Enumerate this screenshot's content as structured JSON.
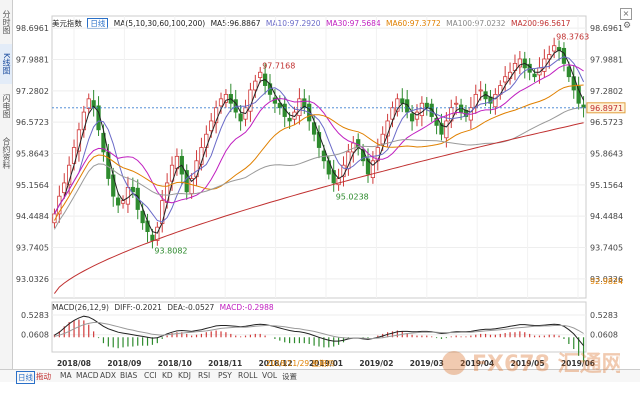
{
  "side_tabs": [
    "分时图",
    "K线图",
    "闪电图",
    "合约资料"
  ],
  "legend": {
    "title": "美元指数",
    "period": "日线",
    "params": "MA(5,10,30,60,100,200)",
    "ma5": "MA5:96.8867",
    "ma10": "MA10:97.2920",
    "ma30": "MA30:97.5684",
    "ma60": "MA60:97.3772",
    "ma100": "MA100:97.0232",
    "ma200": "MA200:96.5617"
  },
  "colors": {
    "up": "#d03a3a",
    "down": "#2e8b2e",
    "ma5": "#222222",
    "ma10": "#6a6ac8",
    "ma30": "#c020c0",
    "ma60": "#e08000",
    "ma100": "#9a9a9a",
    "ma200": "#c03030",
    "dif": "#222222",
    "dea": "#9a9a9a",
    "macd": "#c020c0"
  },
  "macd_legend": {
    "params": "MACD(26,12,9)",
    "dif": "DIFF:-0.2021",
    "dea": "DEA:-0.0527",
    "macd": "MACD:-0.2988"
  },
  "toolbar": {
    "period": "日线",
    "drag": "拖动",
    "indicators": [
      "MA",
      "MACD",
      "ADX",
      "BIAS",
      "CCI",
      "KD",
      "KDJ",
      "RSI",
      "PSY",
      "ROLL",
      "VOL"
    ],
    "settings": "设置",
    "close": "×"
  },
  "watermark": "FX678 汇通网",
  "date_highlight": "2018/11/29 星期四",
  "current_price_label": "96.8971",
  "chart_data": {
    "type": "candlestick",
    "title": "美元指数",
    "y_ticks": [
      "98.6961",
      "97.9881",
      "97.2802",
      "96.5723",
      "95.8643",
      "95.1564",
      "94.4484",
      "93.7405",
      "93.0326"
    ],
    "y_range": [
      92.6,
      98.7
    ],
    "x_labels": [
      "2018/08",
      "2018/09",
      "2018/10",
      "2018/11",
      "2018/12",
      "2019/01",
      "2019/02",
      "2019/03",
      "2019/04",
      "2019/05",
      "2019/06"
    ],
    "annotations": [
      {
        "label": "97.7168",
        "type": "high"
      },
      {
        "label": "98.3763",
        "type": "high"
      },
      {
        "label": "93.8082",
        "type": "low"
      },
      {
        "label": "95.0238",
        "type": "low"
      }
    ],
    "bottom_left_label": "92.9824",
    "close_series_approx": [
      94.5,
      94.9,
      95.2,
      95.6,
      96.0,
      96.4,
      96.8,
      97.1,
      96.9,
      96.4,
      95.9,
      95.3,
      94.9,
      94.7,
      94.8,
      95.1,
      95.0,
      94.6,
      94.3,
      94.1,
      93.9,
      94.2,
      94.8,
      95.2,
      95.6,
      95.8,
      95.4,
      95.0,
      95.3,
      95.7,
      96.0,
      96.3,
      96.6,
      96.9,
      97.1,
      97.2,
      97.0,
      96.8,
      96.6,
      96.9,
      97.3,
      97.5,
      97.7,
      97.4,
      97.2,
      97.0,
      96.9,
      96.7,
      96.6,
      96.8,
      97.1,
      96.9,
      96.6,
      96.3,
      96.0,
      95.7,
      95.4,
      95.2,
      95.3,
      95.6,
      95.9,
      96.1,
      96.0,
      95.7,
      95.4,
      95.7,
      96.0,
      96.3,
      96.6,
      96.9,
      97.1,
      97.0,
      96.8,
      96.6,
      96.8,
      97.0,
      96.9,
      96.7,
      96.5,
      96.3,
      96.6,
      96.9,
      97.0,
      96.8,
      96.7,
      96.9,
      97.2,
      97.3,
      97.1,
      97.0,
      97.2,
      97.4,
      97.6,
      97.7,
      97.9,
      98.0,
      97.8,
      97.7,
      97.6,
      97.8,
      98.0,
      98.1,
      98.3,
      98.2,
      97.9,
      97.6,
      97.3,
      97.0,
      96.9
    ]
  },
  "macd_chart": {
    "type": "macd",
    "y_ticks": [
      "0.5283",
      "0.0608"
    ],
    "y_range": [
      -0.35,
      0.6
    ],
    "dif_approx": [
      0.05,
      0.12,
      0.22,
      0.32,
      0.4,
      0.46,
      0.5,
      0.48,
      0.42,
      0.34,
      0.26,
      0.2,
      0.16,
      0.12,
      0.1,
      0.08,
      0.06,
      0.04,
      0.02,
      0.0,
      -0.02,
      -0.01,
      0.03,
      0.08,
      0.12,
      0.15,
      0.16,
      0.15,
      0.14,
      0.16,
      0.18,
      0.21,
      0.24,
      0.27,
      0.28,
      0.28,
      0.27,
      0.26,
      0.25,
      0.26,
      0.28,
      0.3,
      0.31,
      0.3,
      0.28,
      0.25,
      0.22,
      0.19,
      0.16,
      0.14,
      0.13,
      0.11,
      0.08,
      0.04,
      0.0,
      -0.04,
      -0.07,
      -0.09,
      -0.09,
      -0.07,
      -0.04,
      -0.02,
      -0.02,
      -0.04,
      -0.05,
      -0.03,
      0.0,
      0.03,
      0.07,
      0.1,
      0.13,
      0.14,
      0.14,
      0.13,
      0.13,
      0.14,
      0.14,
      0.13,
      0.11,
      0.09,
      0.1,
      0.12,
      0.13,
      0.13,
      0.13,
      0.14,
      0.16,
      0.18,
      0.19,
      0.19,
      0.2,
      0.22,
      0.24,
      0.26,
      0.28,
      0.3,
      0.3,
      0.29,
      0.28,
      0.28,
      0.29,
      0.3,
      0.31,
      0.3,
      0.26,
      0.18,
      0.08,
      -0.06,
      -0.2
    ],
    "dea_approx": [
      0.02,
      0.05,
      0.09,
      0.14,
      0.2,
      0.25,
      0.3,
      0.33,
      0.35,
      0.35,
      0.33,
      0.31,
      0.28,
      0.25,
      0.22,
      0.19,
      0.17,
      0.14,
      0.12,
      0.1,
      0.07,
      0.06,
      0.05,
      0.06,
      0.07,
      0.09,
      0.1,
      0.11,
      0.12,
      0.13,
      0.14,
      0.15,
      0.17,
      0.19,
      0.21,
      0.22,
      0.23,
      0.24,
      0.24,
      0.24,
      0.25,
      0.26,
      0.27,
      0.28,
      0.28,
      0.27,
      0.26,
      0.25,
      0.23,
      0.21,
      0.2,
      0.18,
      0.16,
      0.14,
      0.11,
      0.08,
      0.05,
      0.02,
      0.0,
      -0.01,
      -0.02,
      -0.02,
      -0.02,
      -0.02,
      -0.03,
      -0.03,
      -0.02,
      -0.01,
      0.01,
      0.03,
      0.05,
      0.07,
      0.09,
      0.1,
      0.11,
      0.12,
      0.12,
      0.12,
      0.12,
      0.11,
      0.11,
      0.11,
      0.11,
      0.12,
      0.12,
      0.12,
      0.13,
      0.14,
      0.15,
      0.16,
      0.17,
      0.18,
      0.19,
      0.2,
      0.22,
      0.23,
      0.24,
      0.25,
      0.26,
      0.26,
      0.27,
      0.27,
      0.28,
      0.28,
      0.28,
      0.26,
      0.22,
      0.16,
      0.09
    ]
  }
}
